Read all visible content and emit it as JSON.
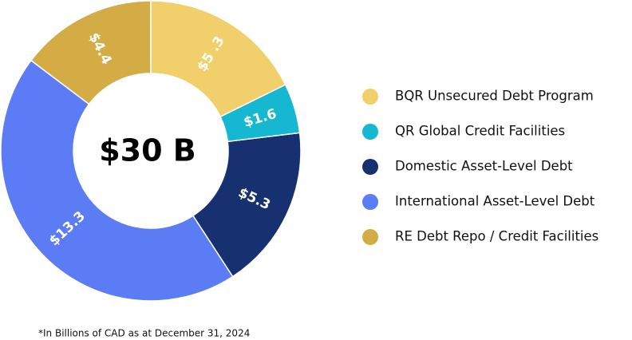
{
  "chart_data": {
    "type": "donut",
    "center_label": "$30 B",
    "categories": [
      "BQR Unsecured Debt Program",
      "QR Global Credit Facilities",
      "Domestic Asset-Level Debt",
      "International Asset-Level Debt",
      "RE Debt Repo / Credit Facilities"
    ],
    "values": [
      5.3,
      1.6,
      5.3,
      13.3,
      4.4
    ],
    "value_labels": [
      "$5 .3",
      "$1.6",
      "$5.3",
      "$13.3",
      "$4.4"
    ],
    "colors": [
      "#f1d06b",
      "#15b8d0",
      "#17306f",
      "#5b7cf5",
      "#d3ac45"
    ],
    "footnote": "*In Billions of CAD as at December 31, 2024"
  }
}
